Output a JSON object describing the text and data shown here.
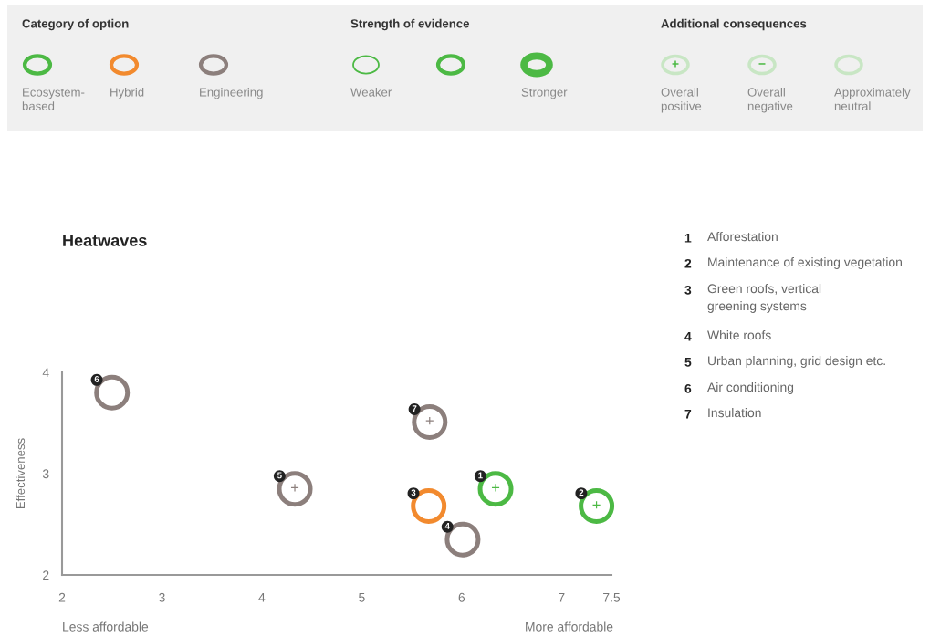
{
  "chart_data": [
    {
      "type": "other",
      "annotations": [
        "Category of option",
        "Ecosystem-\nbased",
        "Hybrid",
        "Engineering",
        "Strength of evidence",
        "Weaker",
        "Stronger",
        "Additional consequences",
        "+",
        "−",
        "Overall\npositive",
        "Overall\nnegative",
        "Approximately\nneutral"
      ]
    },
    {
      "type": "scatter",
      "title": "Heatwaves",
      "ylabel": "Effectiveness",
      "marker": "circle",
      "grid": false,
      "x": [
        6.34,
        7.35,
        5.67,
        6.01,
        4.33,
        2.5,
        5.68
      ],
      "values": [
        2.85,
        2.68,
        2.68,
        2.35,
        2.85,
        3.8,
        3.51
      ],
      "colors": [
        "#4cb944",
        "#4cb944",
        "#f28a2e",
        "#8c7f7c",
        "#8c7f7c",
        "#8c7f7c",
        "#8c7f7c"
      ],
      "xlim": [
        2,
        7.5
      ],
      "xticks": [
        2,
        3,
        4,
        5,
        6,
        7,
        7.5
      ],
      "ylim": [
        2,
        4
      ],
      "yticks": [
        2,
        3,
        4
      ],
      "annotations": [
        {
          "text": "1",
          "x": 6.34,
          "y": 2.85
        },
        {
          "text": "2",
          "x": 7.35,
          "y": 2.68
        },
        {
          "text": "3",
          "x": 5.67,
          "y": 2.68
        },
        {
          "text": "4",
          "x": 6.01,
          "y": 2.35
        },
        {
          "text": "5",
          "x": 4.33,
          "y": 2.85
        },
        {
          "text": "6",
          "x": 2.5,
          "y": 3.8
        },
        {
          "text": "7",
          "x": 5.68,
          "y": 3.51
        },
        {
          "text": "+",
          "x": 6.34,
          "y": 2.85
        },
        {
          "text": "+",
          "x": 7.35,
          "y": 2.68
        },
        {
          "text": "+",
          "x": 4.33,
          "y": 2.85
        },
        {
          "text": "+",
          "x": 5.68,
          "y": 3.51
        },
        "Less affordable",
        "More affordable",
        "1",
        "Afforestation",
        "2",
        "Maintenance of existing vegetation",
        "3",
        "Green roofs, vertical\ngreening systems",
        "4",
        "White roofs",
        "5",
        "Urban planning, grid design etc.",
        "6",
        "Air conditioning",
        "7",
        "Insulation"
      ]
    }
  ]
}
